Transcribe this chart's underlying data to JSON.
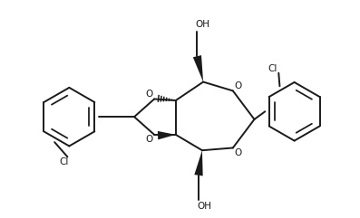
{
  "bg_color": "#ffffff",
  "line_color": "#1a1a1a",
  "line_width": 1.4,
  "fig_width": 3.97,
  "fig_height": 2.41,
  "dpi": 100,
  "xlim": [
    0,
    10
  ],
  "ylim": [
    0,
    6.08
  ],
  "font_size": 7.5
}
